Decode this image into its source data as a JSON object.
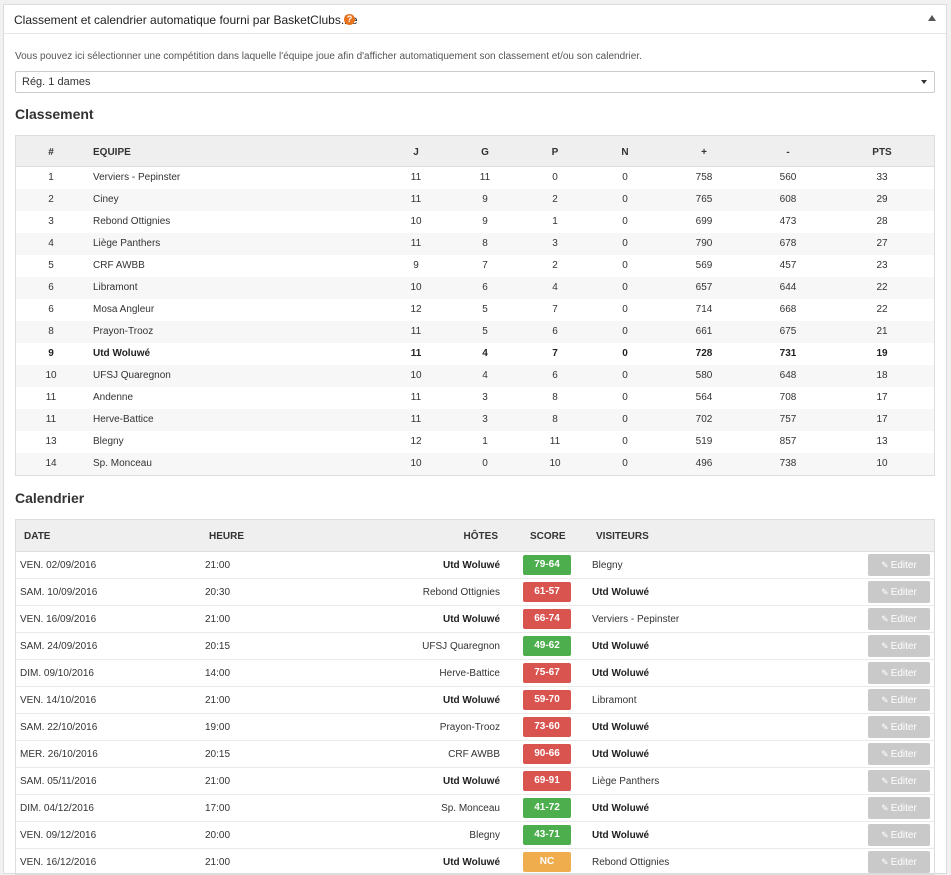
{
  "header": {
    "title": "Classement et calendrier automatique fourni par BasketClubs.be",
    "help_icon": "?"
  },
  "intro": "Vous pouvez ici sélectionner une compétition dans laquelle l'équipe joue afin d'afficher automatiquement son classement et/ou son calendrier.",
  "competition": {
    "selected": "Rég. 1 dames"
  },
  "standings": {
    "title": "Classement",
    "headers": [
      "#",
      "EQUIPE",
      "J",
      "G",
      "P",
      "N",
      "+",
      "-",
      "PTS"
    ],
    "rows": [
      [
        "1",
        "Verviers - Pepinster",
        "11",
        "11",
        "0",
        "0",
        "758",
        "560",
        "33"
      ],
      [
        "2",
        "Ciney",
        "11",
        "9",
        "2",
        "0",
        "765",
        "608",
        "29"
      ],
      [
        "3",
        "Rebond Ottignies",
        "10",
        "9",
        "1",
        "0",
        "699",
        "473",
        "28"
      ],
      [
        "4",
        "Liège Panthers",
        "11",
        "8",
        "3",
        "0",
        "790",
        "678",
        "27"
      ],
      [
        "5",
        "CRF AWBB",
        "9",
        "7",
        "2",
        "0",
        "569",
        "457",
        "23"
      ],
      [
        "6",
        "Libramont",
        "10",
        "6",
        "4",
        "0",
        "657",
        "644",
        "22"
      ],
      [
        "6",
        "Mosa Angleur",
        "12",
        "5",
        "7",
        "0",
        "714",
        "668",
        "22"
      ],
      [
        "8",
        "Prayon-Trooz",
        "11",
        "5",
        "6",
        "0",
        "661",
        "675",
        "21"
      ],
      [
        "9",
        "Utd Woluwé",
        "11",
        "4",
        "7",
        "0",
        "728",
        "731",
        "19"
      ],
      [
        "10",
        "UFSJ Quaregnon",
        "10",
        "4",
        "6",
        "0",
        "580",
        "648",
        "18"
      ],
      [
        "11",
        "Andenne",
        "11",
        "3",
        "8",
        "0",
        "564",
        "708",
        "17"
      ],
      [
        "11",
        "Herve-Battice",
        "11",
        "3",
        "8",
        "0",
        "702",
        "757",
        "17"
      ],
      [
        "13",
        "Blegny",
        "12",
        "1",
        "11",
        "0",
        "519",
        "857",
        "13"
      ],
      [
        "14",
        "Sp. Monceau",
        "10",
        "0",
        "10",
        "0",
        "496",
        "738",
        "10"
      ]
    ],
    "highlight_team": "Utd Woluwé"
  },
  "calendar": {
    "title": "Calendrier",
    "headers": {
      "date": "DATE",
      "time": "HEURE",
      "home": "HÔTES",
      "score": "SCORE",
      "away": "VISITEURS"
    },
    "edit_label": "Editer",
    "matches": [
      {
        "date": "VEN. 02/09/2016",
        "time": "21:00",
        "home": "Utd Woluwé",
        "score": "79-64",
        "result": "win",
        "away": "Blegny"
      },
      {
        "date": "SAM. 10/09/2016",
        "time": "20:30",
        "home": "Rebond Ottignies",
        "score": "61-57",
        "result": "loss",
        "away": "Utd Woluwé"
      },
      {
        "date": "VEN. 16/09/2016",
        "time": "21:00",
        "home": "Utd Woluwé",
        "score": "66-74",
        "result": "loss",
        "away": "Verviers - Pepinster"
      },
      {
        "date": "SAM. 24/09/2016",
        "time": "20:15",
        "home": "UFSJ Quaregnon",
        "score": "49-62",
        "result": "win",
        "away": "Utd Woluwé"
      },
      {
        "date": "DIM. 09/10/2016",
        "time": "14:00",
        "home": "Herve-Battice",
        "score": "75-67",
        "result": "loss",
        "away": "Utd Woluwé"
      },
      {
        "date": "VEN. 14/10/2016",
        "time": "21:00",
        "home": "Utd Woluwé",
        "score": "59-70",
        "result": "loss",
        "away": "Libramont"
      },
      {
        "date": "SAM. 22/10/2016",
        "time": "19:00",
        "home": "Prayon-Trooz",
        "score": "73-60",
        "result": "loss",
        "away": "Utd Woluwé"
      },
      {
        "date": "MER. 26/10/2016",
        "time": "20:15",
        "home": "CRF AWBB",
        "score": "90-66",
        "result": "loss",
        "away": "Utd Woluwé"
      },
      {
        "date": "SAM. 05/11/2016",
        "time": "21:00",
        "home": "Utd Woluwé",
        "score": "69-91",
        "result": "loss",
        "away": "Liège Panthers"
      },
      {
        "date": "DIM. 04/12/2016",
        "time": "17:00",
        "home": "Sp. Monceau",
        "score": "41-72",
        "result": "win",
        "away": "Utd Woluwé"
      },
      {
        "date": "VEN. 09/12/2016",
        "time": "20:00",
        "home": "Blegny",
        "score": "43-71",
        "result": "win",
        "away": "Utd Woluwé"
      },
      {
        "date": "VEN. 16/12/2016",
        "time": "21:00",
        "home": "Utd Woluwé",
        "score": "NC",
        "result": "nc",
        "away": "Rebond Ottignies"
      }
    ]
  }
}
